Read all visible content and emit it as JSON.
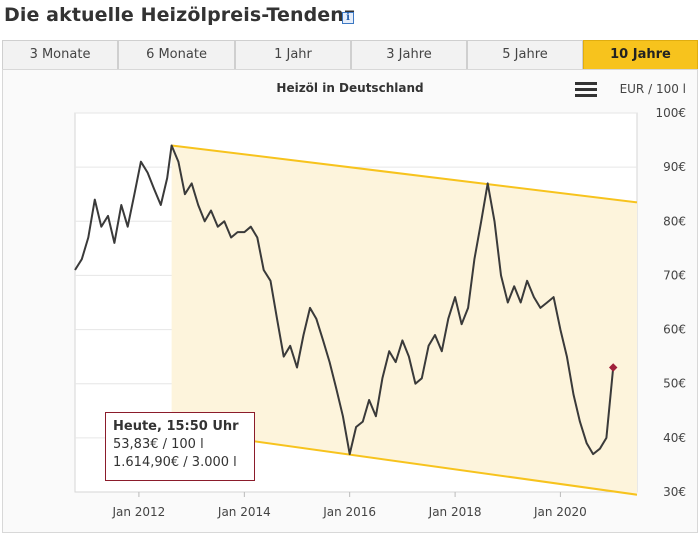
{
  "page": {
    "title": "Die aktuelle Heizölpreis-Tendenz",
    "info_icon": "info-icon"
  },
  "tabs": [
    {
      "label": "3 Monate",
      "active": false
    },
    {
      "label": "6 Monate",
      "active": false
    },
    {
      "label": "1 Jahr",
      "active": false
    },
    {
      "label": "3 Jahre",
      "active": false
    },
    {
      "label": "5 Jahre",
      "active": false
    },
    {
      "label": "10 Jahre",
      "active": true
    }
  ],
  "menu_icon": "hamburger-menu-icon",
  "tooltip": {
    "heading": "Heute, 15:50 Uhr",
    "line1": "53,83€ / 100 l",
    "line2": "1.614,90€ / 3.000 l"
  },
  "chart_data": {
    "type": "line",
    "title": "Heizöl in Deutschland",
    "unit_label": "EUR / 100 l",
    "ylim": [
      30,
      100
    ],
    "y_ticks": [
      30,
      40,
      50,
      60,
      70,
      80,
      90,
      100
    ],
    "y_tick_labels": [
      "30€",
      "40€",
      "50€",
      "60€",
      "70€",
      "80€",
      "90€",
      "100€"
    ],
    "xlim": [
      "2010-10-15",
      "2021-06-15"
    ],
    "x_ticks": [
      "2012-01-01",
      "2014-01-01",
      "2016-01-01",
      "2018-01-01",
      "2020-01-01"
    ],
    "x_tick_labels": [
      "Jan 2012",
      "Jan 2014",
      "Jan 2016",
      "Jan 2018",
      "Jan 2020"
    ],
    "grid": true,
    "colors": {
      "line": "#3a3a3a",
      "channel": "#f7c31d",
      "channel_fill": "#fdf4dc",
      "today_marker": "#a0203a",
      "grid": "#e6e6e6"
    },
    "channel": {
      "upper": {
        "start": [
          "2012-08-15",
          94
        ],
        "end": [
          "2021-06-15",
          83.5
        ]
      },
      "lower": {
        "start": [
          "2012-08-15",
          41.5
        ],
        "end": [
          "2021-06-15",
          29.5
        ]
      }
    },
    "series": [
      {
        "x": [
          "2010-10-15",
          "2010-12-01",
          "2011-01-15",
          "2011-03-01",
          "2011-04-15",
          "2011-06-01",
          "2011-07-15",
          "2011-09-01",
          "2011-10-15",
          "2011-12-01",
          "2012-01-15",
          "2012-03-01",
          "2012-04-15",
          "2012-06-01",
          "2012-07-15",
          "2012-08-15",
          "2012-10-01",
          "2012-11-15",
          "2013-01-01",
          "2013-02-15",
          "2013-04-01",
          "2013-05-15",
          "2013-07-01",
          "2013-08-15",
          "2013-10-01",
          "2013-11-15",
          "2014-01-01",
          "2014-02-15",
          "2014-04-01",
          "2014-05-15",
          "2014-07-01",
          "2014-08-15",
          "2014-10-01",
          "2014-11-15",
          "2015-01-01",
          "2015-02-15",
          "2015-04-01",
          "2015-05-15",
          "2015-07-01",
          "2015-08-15",
          "2015-10-01",
          "2015-11-15",
          "2016-01-01",
          "2016-02-15",
          "2016-04-01",
          "2016-05-15",
          "2016-07-01",
          "2016-08-15",
          "2016-10-01",
          "2016-11-15",
          "2017-01-01",
          "2017-02-15",
          "2017-04-01",
          "2017-05-15",
          "2017-07-01",
          "2017-08-15",
          "2017-10-01",
          "2017-11-15",
          "2018-01-01",
          "2018-02-15",
          "2018-04-01",
          "2018-05-15",
          "2018-07-01",
          "2018-08-15",
          "2018-10-01",
          "2018-11-15",
          "2019-01-01",
          "2019-02-15",
          "2019-04-01",
          "2019-05-15",
          "2019-07-01",
          "2019-08-15",
          "2019-10-01",
          "2019-11-15",
          "2020-01-01",
          "2020-02-15",
          "2020-04-01",
          "2020-05-15",
          "2020-07-01",
          "2020-08-15",
          "2020-10-01",
          "2020-11-15",
          "2021-01-01"
        ],
        "values": [
          71,
          73,
          77,
          84,
          79,
          81,
          76,
          83,
          79,
          85,
          91,
          89,
          86,
          83,
          88,
          94,
          91,
          85,
          87,
          83,
          80,
          82,
          79,
          80,
          77,
          78,
          78,
          79,
          77,
          71,
          69,
          62,
          55,
          57,
          53,
          59,
          64,
          62,
          58,
          54,
          49,
          44,
          37,
          42,
          43,
          47,
          44,
          51,
          56,
          54,
          58,
          55,
          50,
          51,
          57,
          59,
          56,
          62,
          66,
          61,
          64,
          73,
          80,
          87,
          80,
          70,
          65,
          68,
          65,
          69,
          66,
          64,
          65,
          66,
          60,
          55,
          48,
          43,
          39,
          37,
          38,
          40,
          53
        ]
      }
    ]
  }
}
